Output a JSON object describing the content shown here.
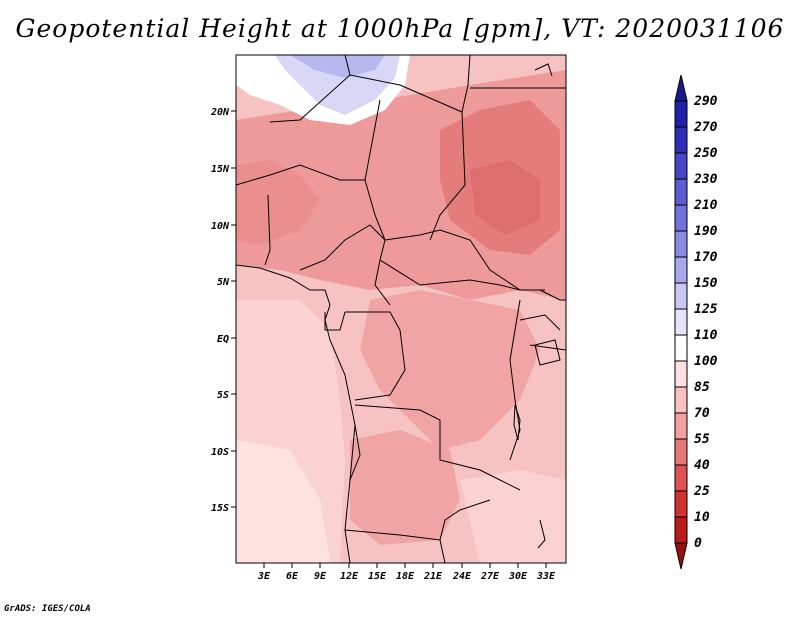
{
  "title": "Geopotential Height at 1000hPa [gpm], VT: 2020031106",
  "credit": "GrADS: IGES/COLA",
  "map": {
    "lat_labels": [
      "20N",
      "15N",
      "10N",
      "5N",
      "EQ",
      "5S",
      "10S",
      "15S"
    ],
    "lon_labels": [
      "3E",
      "6E",
      "9E",
      "12E",
      "15E",
      "18E",
      "21E",
      "24E",
      "27E",
      "30E",
      "33E"
    ]
  },
  "colorbar": {
    "labels": [
      "290",
      "270",
      "250",
      "230",
      "210",
      "190",
      "170",
      "150",
      "125",
      "110",
      "100",
      "85",
      "70",
      "55",
      "40",
      "25",
      "10",
      "0"
    ],
    "colors": [
      "#1a1a8c",
      "#2020a8",
      "#2e2eb8",
      "#4646c8",
      "#5c5cd4",
      "#7272dc",
      "#8a8ae4",
      "#a8a8ec",
      "#c8c8f4",
      "#e4e4fa",
      "#ffffff",
      "#fde0e0",
      "#f9c2c2",
      "#f2a0a0",
      "#e87878",
      "#df5252",
      "#d03232",
      "#b81c1c",
      "#9a1010"
    ]
  }
}
